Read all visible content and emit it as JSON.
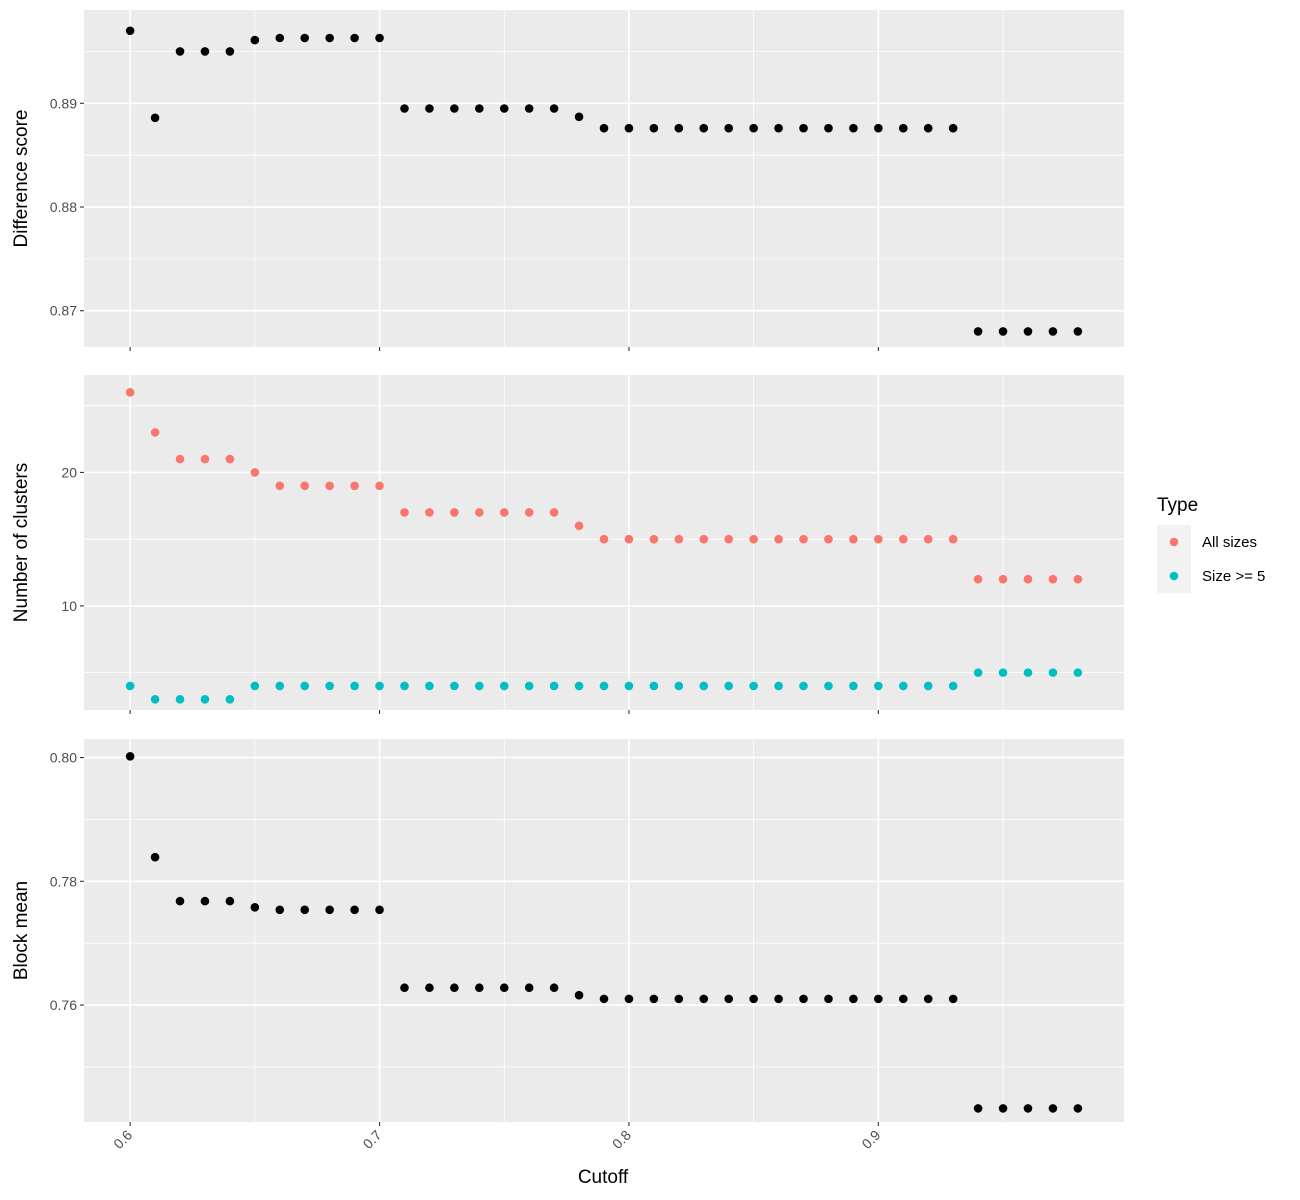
{
  "chart_data": {
    "type": "scatter",
    "xlabel": "Cutoff",
    "x_ticks": [
      "0.6",
      "0.7",
      "0.8",
      "0.9"
    ],
    "x_tick_values": [
      0.6,
      0.7,
      0.8,
      0.9
    ],
    "xlim": [
      0.5815,
      0.9985
    ],
    "x": [
      0.6,
      0.61,
      0.62,
      0.63,
      0.64,
      0.65,
      0.66,
      0.67,
      0.68,
      0.69,
      0.7,
      0.71,
      0.72,
      0.73,
      0.74,
      0.75,
      0.76,
      0.77,
      0.78,
      0.79,
      0.8,
      0.81,
      0.82,
      0.83,
      0.84,
      0.85,
      0.86,
      0.87,
      0.88,
      0.89,
      0.9,
      0.91,
      0.92,
      0.93,
      0.94,
      0.95,
      0.96,
      0.97,
      0.98
    ],
    "panels": [
      {
        "ylabel": "Difference score",
        "ylim": [
          0.8665,
          0.899
        ],
        "y_ticks": [
          "0.87",
          "0.88",
          "0.89"
        ],
        "y_tick_values": [
          0.87,
          0.88,
          0.89
        ],
        "series": [
          {
            "color": "#000000",
            "values": [
              0.897,
              0.8886,
              0.895,
              0.895,
              0.895,
              0.8961,
              0.8963,
              0.8963,
              0.8963,
              0.8963,
              0.8963,
              0.8895,
              0.8895,
              0.8895,
              0.8895,
              0.8895,
              0.8895,
              0.8895,
              0.8887,
              0.8876,
              0.8876,
              0.8876,
              0.8876,
              0.8876,
              0.8876,
              0.8876,
              0.8876,
              0.8876,
              0.8876,
              0.8876,
              0.8876,
              0.8876,
              0.8876,
              0.8876,
              0.868,
              0.868,
              0.868,
              0.868,
              0.868
            ]
          }
        ]
      },
      {
        "ylabel": "Number of clusters",
        "ylim": [
          2.2,
          27.3
        ],
        "y_ticks": [
          "10",
          "20"
        ],
        "y_tick_values": [
          10,
          20
        ],
        "series": [
          {
            "name": "All sizes",
            "color": "#F8766D",
            "values": [
              26,
              23,
              21,
              21,
              21,
              20,
              19,
              19,
              19,
              19,
              19,
              17,
              17,
              17,
              17,
              17,
              17,
              17,
              16,
              15,
              15,
              15,
              15,
              15,
              15,
              15,
              15,
              15,
              15,
              15,
              15,
              15,
              15,
              15,
              12,
              12,
              12,
              12,
              12
            ]
          },
          {
            "name": "Size >= 5",
            "color": "#00BFC4",
            "values": [
              4,
              3,
              3,
              3,
              3,
              4,
              4,
              4,
              4,
              4,
              4,
              4,
              4,
              4,
              4,
              4,
              4,
              4,
              4,
              4,
              4,
              4,
              4,
              4,
              4,
              4,
              4,
              4,
              4,
              4,
              4,
              4,
              4,
              4,
              5,
              5,
              5,
              5,
              5
            ]
          }
        ]
      },
      {
        "ylabel": "Block mean",
        "ylim": [
          0.7411,
          0.803
        ],
        "y_ticks": [
          "0.76",
          "0.78",
          "0.80"
        ],
        "y_tick_values": [
          0.76,
          0.78,
          0.8
        ],
        "series": [
          {
            "color": "#000000",
            "values": [
              0.8002,
              0.7839,
              0.7768,
              0.7768,
              0.7768,
              0.7758,
              0.7754,
              0.7754,
              0.7754,
              0.7754,
              0.7754,
              0.7628,
              0.7628,
              0.7628,
              0.7628,
              0.7628,
              0.7628,
              0.7628,
              0.7616,
              0.761,
              0.761,
              0.761,
              0.761,
              0.761,
              0.761,
              0.761,
              0.761,
              0.761,
              0.761,
              0.761,
              0.761,
              0.761,
              0.761,
              0.761,
              0.7433,
              0.7433,
              0.7433,
              0.7433,
              0.7433
            ]
          }
        ]
      }
    ],
    "legend": {
      "title": "Type",
      "position": "right",
      "items": [
        {
          "label": "All sizes",
          "color": "#F8766D"
        },
        {
          "label": "Size >= 5",
          "color": "#00BFC4"
        }
      ]
    },
    "grid": true,
    "panel_background": "#EBEBEB"
  }
}
